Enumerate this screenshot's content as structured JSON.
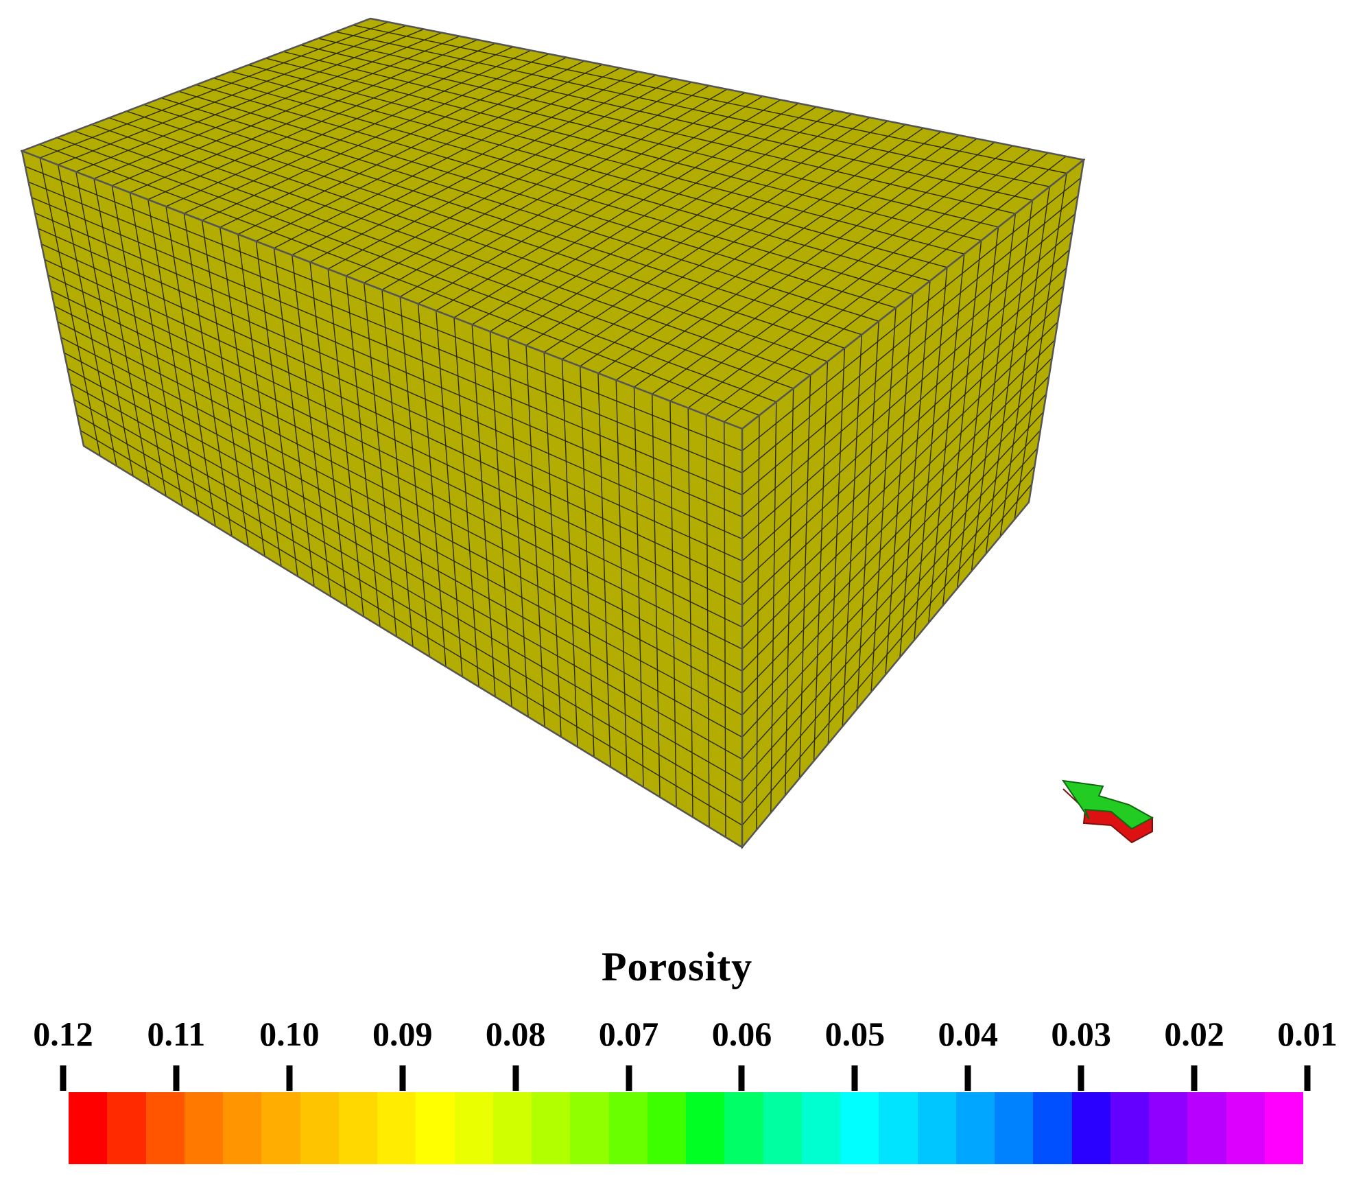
{
  "colorbar": {
    "title": "Porosity",
    "tick_labels": [
      "0.12",
      "0.11",
      "0.10",
      "0.09",
      "0.08",
      "0.07",
      "0.06",
      "0.05",
      "0.04",
      "0.03",
      "0.02",
      "0.01"
    ],
    "min": 0.01,
    "max": 0.12,
    "colors": [
      "#ff0000",
      "#ff2a00",
      "#ff5500",
      "#ff7800",
      "#ff9500",
      "#ffae00",
      "#ffc400",
      "#ffd800",
      "#ffec00",
      "#ffff00",
      "#eaff00",
      "#d0ff00",
      "#b2ff00",
      "#90ff00",
      "#6aff00",
      "#3dff00",
      "#00ff22",
      "#00ff66",
      "#00ffa0",
      "#00ffd0",
      "#00ffff",
      "#00e4ff",
      "#00c6ff",
      "#00a6ff",
      "#0082ff",
      "#0050ff",
      "#2a00ff",
      "#6400ff",
      "#9000ff",
      "#b800ff",
      "#dc00ff",
      "#ff00ff"
    ]
  },
  "mesh": {
    "block_color": "#b2ad00",
    "grid_color": "#2c2a00",
    "porosity_value": 0.09
  },
  "orientation_arrow": {
    "icon": "arrow-icon",
    "top_color": "#22cc22",
    "side_color": "#dd1111"
  }
}
